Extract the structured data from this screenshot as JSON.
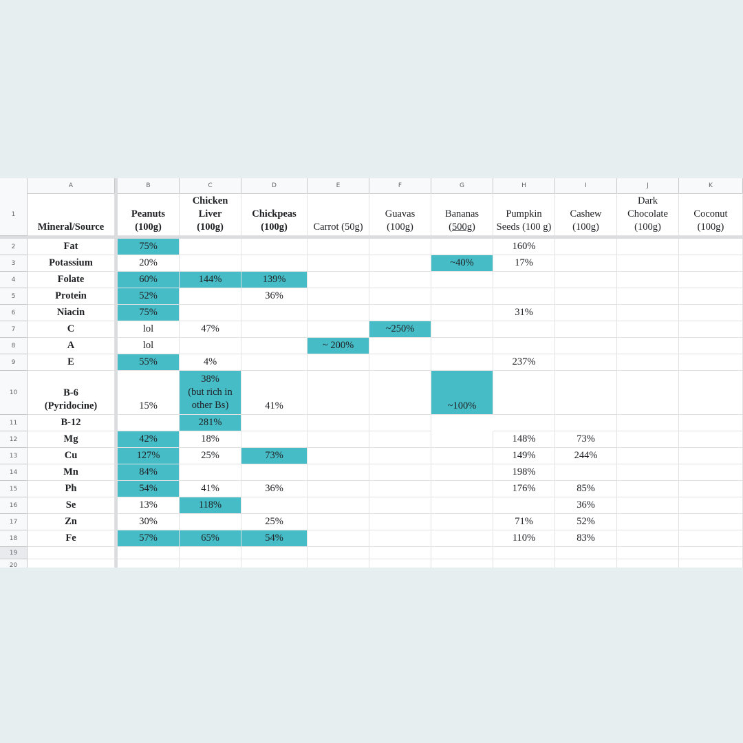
{
  "columns": [
    "A",
    "B",
    "C",
    "D",
    "E",
    "F",
    "G",
    "H",
    "I",
    "J",
    "K"
  ],
  "row_numbers": [
    "1",
    "2",
    "3",
    "4",
    "5",
    "6",
    "7",
    "8",
    "9",
    "10",
    "11",
    "12",
    "13",
    "14",
    "15",
    "16",
    "17",
    "18",
    "19",
    "20"
  ],
  "header_row": {
    "A": "Mineral/Source",
    "B": "Peanuts\n(100g)",
    "C": "Chicken\nLiver\n(100g)",
    "D": "Chickpeas\n(100g)",
    "E": "Carrot (50g)",
    "F": "Guavas\n(100g)",
    "G_line1": "Bananas",
    "G_open": "(",
    "G_underlined": "500g",
    "G_close": ")",
    "H": "Pumpkin\nSeeds (100 g)",
    "I": "Cashew\n(100g)",
    "J": "Dark\nChocolate\n(100g)",
    "K": "Coconut\n(100g)"
  },
  "rows": [
    {
      "label": "Fat",
      "B": "75%",
      "H": "160%"
    },
    {
      "label": "Potassium",
      "B": "20%",
      "G": "~40%",
      "H": "17%"
    },
    {
      "label": "Folate",
      "B": "60%",
      "C": "144%",
      "D": "139%"
    },
    {
      "label": "Protein",
      "B": "52%",
      "D": "36%"
    },
    {
      "label": "Niacin",
      "B": "75%",
      "H": "31%"
    },
    {
      "label": "C",
      "B": "lol",
      "C": "47%",
      "F": "~250%"
    },
    {
      "label": "A",
      "B": "lol",
      "E": "~ 200%"
    },
    {
      "label": "E",
      "B": "55%",
      "C": "4%",
      "H": "237%"
    },
    {
      "label": "B-6\n(Pyridocine)",
      "B": "15%",
      "C": "38%\n(but rich in\nother Bs)",
      "D": "41%",
      "G": "~100%"
    },
    {
      "label": "B-12",
      "C": "281%"
    },
    {
      "label": "Mg",
      "B": "42%",
      "C": "18%",
      "H": "148%",
      "I": "73%"
    },
    {
      "label": "Cu",
      "B": "127%",
      "C": "25%",
      "D": "73%",
      "H": "149%",
      "I": "244%"
    },
    {
      "label": "Mn",
      "B": "84%",
      "H": "198%"
    },
    {
      "label": "Ph",
      "B": "54%",
      "C": "41%",
      "D": "36%",
      "H": "176%",
      "I": "85%"
    },
    {
      "label": "Se",
      "B": "13%",
      "C": "118%",
      "I": "36%"
    },
    {
      "label": "Zn",
      "B": "30%",
      "D": "25%",
      "H": "71%",
      "I": "52%"
    },
    {
      "label": "Fe",
      "B": "57%",
      "C": "65%",
      "D": "54%",
      "H": "110%",
      "I": "83%"
    }
  ],
  "colors": {
    "highlight": "#46bcc6",
    "background": "#e6eef0"
  }
}
